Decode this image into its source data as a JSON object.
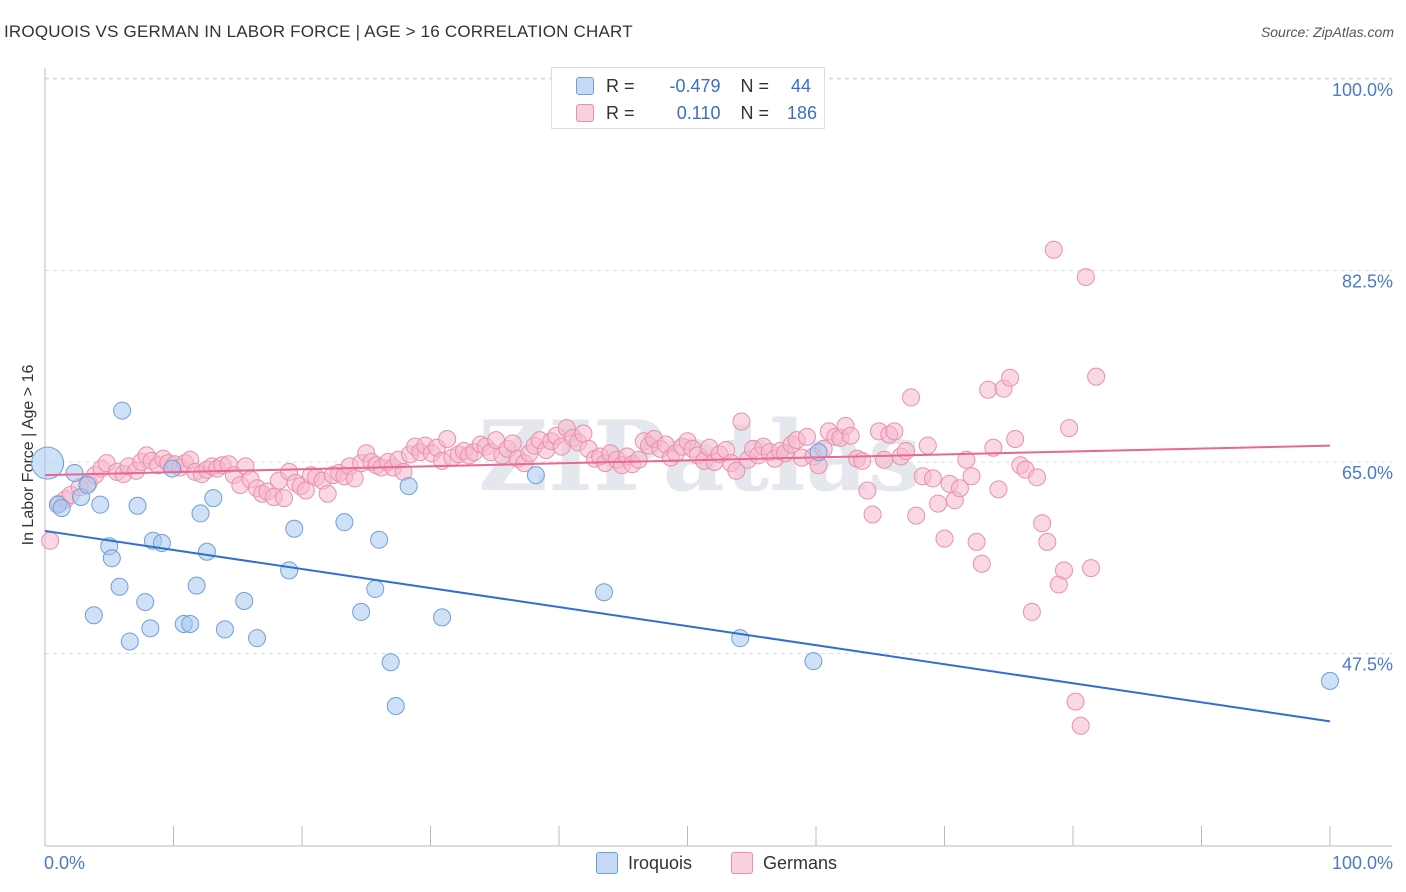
{
  "header": {
    "title": "IROQUOIS VS GERMAN IN LABOR FORCE | AGE > 16 CORRELATION CHART",
    "source": "Source: ZipAtlas.com"
  },
  "colors": {
    "iroquois_fill": "#a8c8f0",
    "iroquois_stroke": "#6f9fd8",
    "iroquois_line": "#2f6fd0",
    "germans_fill": "#f5b8cc",
    "germans_stroke": "#e890ad",
    "germans_line": "#e86890",
    "tick_label": "#4a7ac8",
    "grid": "#dddddd"
  },
  "legend_top": {
    "rows": [
      {
        "r_label": "R =",
        "r_value": "-0.479",
        "n_label": "N =",
        "n_value": "44"
      },
      {
        "r_label": "R =",
        "r_value": "0.110",
        "n_label": "N =",
        "n_value": "186"
      }
    ]
  },
  "legend_bottom": [
    {
      "label": "Iroquois"
    },
    {
      "label": "Germans"
    }
  ],
  "chart_data": {
    "type": "scatter",
    "title": "IROQUOIS VS GERMAN IN LABOR FORCE | AGE > 16 CORRELATION CHART",
    "xlabel": "",
    "ylabel": "In Labor Force | Age > 16",
    "xlim": [
      0,
      100
    ],
    "ylim": [
      30,
      101
    ],
    "x_tick_labels": [
      "0.0%",
      "100.0%"
    ],
    "y_ticks": [
      47.5,
      65.0,
      82.5,
      100.0
    ],
    "y_tick_labels": [
      "47.5%",
      "65.0%",
      "82.5%",
      "100.0%"
    ],
    "grid": true,
    "watermark": "ZIPatlas",
    "series": [
      {
        "name": "Iroquois",
        "r": -0.479,
        "n": 44,
        "trend": {
          "x": [
            0,
            100
          ],
          "y": [
            58.7,
            41.3
          ]
        },
        "points": [
          [
            0.2,
            64.9
          ],
          [
            1.0,
            61.1
          ],
          [
            1.3,
            60.8
          ],
          [
            2.3,
            64.0
          ],
          [
            2.8,
            61.8
          ],
          [
            3.3,
            62.9
          ],
          [
            4.3,
            61.1
          ],
          [
            5.0,
            57.3
          ],
          [
            5.2,
            56.2
          ],
          [
            5.8,
            53.6
          ],
          [
            6.0,
            69.7
          ],
          [
            7.2,
            61.0
          ],
          [
            7.8,
            52.2
          ],
          [
            8.4,
            57.8
          ],
          [
            9.1,
            57.6
          ],
          [
            8.2,
            49.8
          ],
          [
            3.8,
            51.0
          ],
          [
            6.6,
            48.6
          ],
          [
            9.9,
            64.4
          ],
          [
            10.8,
            50.2
          ],
          [
            11.3,
            50.2
          ],
          [
            11.8,
            53.7
          ],
          [
            12.1,
            60.3
          ],
          [
            12.6,
            56.8
          ],
          [
            13.1,
            61.7
          ],
          [
            14.0,
            49.7
          ],
          [
            15.5,
            52.3
          ],
          [
            16.5,
            48.9
          ],
          [
            19.0,
            55.1
          ],
          [
            19.4,
            58.9
          ],
          [
            23.3,
            59.5
          ],
          [
            24.6,
            51.3
          ],
          [
            25.7,
            53.4
          ],
          [
            26.0,
            57.9
          ],
          [
            26.9,
            46.7
          ],
          [
            27.3,
            42.7
          ],
          [
            28.3,
            62.8
          ],
          [
            30.9,
            50.8
          ],
          [
            38.2,
            63.8
          ],
          [
            43.5,
            53.1
          ],
          [
            54.1,
            48.9
          ],
          [
            59.8,
            46.8
          ],
          [
            60.2,
            65.9
          ],
          [
            100.0,
            45.0
          ]
        ]
      },
      {
        "name": "Germans",
        "r": 0.11,
        "n": 186,
        "trend": {
          "x": [
            0,
            100
          ],
          "y": [
            63.8,
            66.5
          ]
        },
        "points": [
          [
            0.4,
            57.8
          ],
          [
            1.1,
            61.2
          ],
          [
            1.6,
            61.6
          ],
          [
            2.0,
            62.0
          ],
          [
            2.7,
            62.7
          ],
          [
            3.4,
            63.1
          ],
          [
            3.9,
            63.8
          ],
          [
            4.4,
            64.4
          ],
          [
            4.8,
            64.9
          ],
          [
            5.6,
            64.1
          ],
          [
            6.1,
            63.9
          ],
          [
            6.5,
            64.6
          ],
          [
            7.1,
            64.2
          ],
          [
            7.5,
            65.0
          ],
          [
            7.9,
            65.6
          ],
          [
            8.3,
            65.1
          ],
          [
            8.8,
            64.7
          ],
          [
            9.2,
            65.3
          ],
          [
            9.6,
            64.9
          ],
          [
            10.1,
            64.8
          ],
          [
            10.5,
            64.5
          ],
          [
            10.9,
            64.9
          ],
          [
            11.3,
            65.2
          ],
          [
            11.7,
            64.1
          ],
          [
            12.2,
            63.9
          ],
          [
            12.6,
            64.3
          ],
          [
            13.0,
            64.6
          ],
          [
            13.4,
            64.4
          ],
          [
            13.8,
            64.7
          ],
          [
            14.3,
            64.8
          ],
          [
            14.7,
            63.8
          ],
          [
            15.2,
            62.9
          ],
          [
            15.6,
            64.6
          ],
          [
            16.0,
            63.4
          ],
          [
            16.5,
            62.6
          ],
          [
            16.9,
            62.1
          ],
          [
            17.3,
            62.3
          ],
          [
            17.8,
            61.8
          ],
          [
            18.2,
            63.3
          ],
          [
            18.6,
            61.7
          ],
          [
            19.0,
            64.1
          ],
          [
            19.5,
            63.1
          ],
          [
            19.9,
            62.8
          ],
          [
            20.3,
            62.4
          ],
          [
            20.7,
            63.8
          ],
          [
            21.1,
            63.6
          ],
          [
            21.6,
            63.3
          ],
          [
            22.0,
            62.1
          ],
          [
            22.4,
            63.8
          ],
          [
            22.9,
            64.0
          ],
          [
            23.3,
            63.7
          ],
          [
            23.7,
            64.6
          ],
          [
            24.1,
            63.5
          ],
          [
            24.6,
            64.9
          ],
          [
            25.0,
            65.8
          ],
          [
            25.4,
            65.0
          ],
          [
            25.8,
            64.7
          ],
          [
            26.2,
            64.5
          ],
          [
            26.7,
            65.0
          ],
          [
            27.1,
            64.5
          ],
          [
            27.5,
            65.2
          ],
          [
            27.9,
            64.1
          ],
          [
            28.4,
            65.7
          ],
          [
            28.8,
            66.4
          ],
          [
            29.2,
            65.9
          ],
          [
            29.6,
            66.5
          ],
          [
            30.1,
            65.8
          ],
          [
            30.5,
            66.3
          ],
          [
            30.9,
            65.1
          ],
          [
            31.3,
            67.1
          ],
          [
            31.7,
            65.4
          ],
          [
            32.2,
            65.7
          ],
          [
            32.6,
            66.0
          ],
          [
            33.0,
            65.6
          ],
          [
            33.4,
            65.9
          ],
          [
            33.9,
            66.6
          ],
          [
            34.3,
            66.4
          ],
          [
            34.7,
            65.9
          ],
          [
            35.1,
            67.0
          ],
          [
            35.6,
            65.6
          ],
          [
            36.0,
            66.2
          ],
          [
            36.4,
            66.7
          ],
          [
            36.8,
            65.3
          ],
          [
            37.3,
            64.9
          ],
          [
            37.7,
            65.8
          ],
          [
            38.1,
            66.5
          ],
          [
            38.5,
            67.0
          ],
          [
            39.0,
            66.1
          ],
          [
            39.4,
            66.9
          ],
          [
            39.8,
            67.4
          ],
          [
            40.2,
            66.4
          ],
          [
            40.6,
            68.1
          ],
          [
            41.1,
            67.2
          ],
          [
            41.5,
            66.8
          ],
          [
            41.9,
            67.6
          ],
          [
            42.3,
            66.2
          ],
          [
            42.8,
            65.3
          ],
          [
            43.2,
            65.5
          ],
          [
            43.6,
            64.9
          ],
          [
            44.0,
            65.8
          ],
          [
            44.5,
            65.2
          ],
          [
            44.9,
            64.7
          ],
          [
            45.3,
            65.5
          ],
          [
            45.7,
            64.8
          ],
          [
            46.2,
            65.2
          ],
          [
            46.6,
            66.9
          ],
          [
            47.0,
            66.5
          ],
          [
            47.4,
            67.1
          ],
          [
            47.9,
            66.2
          ],
          [
            48.3,
            66.6
          ],
          [
            48.7,
            65.4
          ],
          [
            49.1,
            65.8
          ],
          [
            49.6,
            66.4
          ],
          [
            50.0,
            66.9
          ],
          [
            50.4,
            66.2
          ],
          [
            50.8,
            65.6
          ],
          [
            51.3,
            65.1
          ],
          [
            51.7,
            66.3
          ],
          [
            52.1,
            65.0
          ],
          [
            52.5,
            65.7
          ],
          [
            53.0,
            66.1
          ],
          [
            53.4,
            64.9
          ],
          [
            53.8,
            64.2
          ],
          [
            54.2,
            68.7
          ],
          [
            54.7,
            65.2
          ],
          [
            55.1,
            66.2
          ],
          [
            55.5,
            65.6
          ],
          [
            55.9,
            66.4
          ],
          [
            56.4,
            65.9
          ],
          [
            56.8,
            65.3
          ],
          [
            57.2,
            66.0
          ],
          [
            57.6,
            65.8
          ],
          [
            58.1,
            66.6
          ],
          [
            58.5,
            67.0
          ],
          [
            58.9,
            65.4
          ],
          [
            59.3,
            67.3
          ],
          [
            59.8,
            65.5
          ],
          [
            60.2,
            64.7
          ],
          [
            60.6,
            66.2
          ],
          [
            61.0,
            67.8
          ],
          [
            61.5,
            67.3
          ],
          [
            61.9,
            67.2
          ],
          [
            62.3,
            68.3
          ],
          [
            62.7,
            67.4
          ],
          [
            63.2,
            65.3
          ],
          [
            63.6,
            65.1
          ],
          [
            64.0,
            62.4
          ],
          [
            64.4,
            60.2
          ],
          [
            64.9,
            67.8
          ],
          [
            65.3,
            65.2
          ],
          [
            65.7,
            67.5
          ],
          [
            66.1,
            67.8
          ],
          [
            66.6,
            65.5
          ],
          [
            67.0,
            66.0
          ],
          [
            67.4,
            70.9
          ],
          [
            67.8,
            60.1
          ],
          [
            68.3,
            63.7
          ],
          [
            68.7,
            66.5
          ],
          [
            69.1,
            63.5
          ],
          [
            69.5,
            61.2
          ],
          [
            70.0,
            58.0
          ],
          [
            70.4,
            63.0
          ],
          [
            70.8,
            61.5
          ],
          [
            71.2,
            62.6
          ],
          [
            71.7,
            65.2
          ],
          [
            72.1,
            63.7
          ],
          [
            72.5,
            57.7
          ],
          [
            72.9,
            55.7
          ],
          [
            73.4,
            71.6
          ],
          [
            73.8,
            66.3
          ],
          [
            74.2,
            62.5
          ],
          [
            74.6,
            71.7
          ],
          [
            75.1,
            72.7
          ],
          [
            75.5,
            67.1
          ],
          [
            75.9,
            64.7
          ],
          [
            76.3,
            64.3
          ],
          [
            76.8,
            51.3
          ],
          [
            77.2,
            63.6
          ],
          [
            77.6,
            59.4
          ],
          [
            78.0,
            57.7
          ],
          [
            78.5,
            84.4
          ],
          [
            78.9,
            53.8
          ],
          [
            79.3,
            55.1
          ],
          [
            79.7,
            68.1
          ],
          [
            80.2,
            43.1
          ],
          [
            80.6,
            40.9
          ],
          [
            81.0,
            81.9
          ],
          [
            81.4,
            55.3
          ],
          [
            81.8,
            72.8
          ]
        ]
      }
    ],
    "annotations": []
  }
}
